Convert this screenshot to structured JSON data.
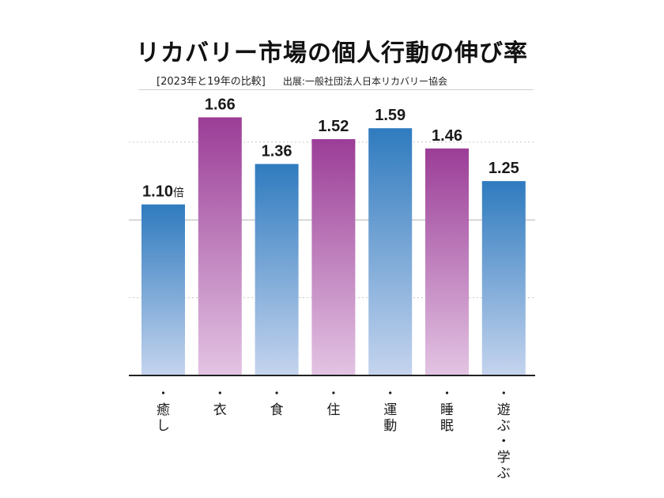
{
  "header": {
    "title": "リカバリー市場の個人行動の伸び率",
    "comparison": "[2023年と19年の比較]",
    "source": "出展:一般社団法人日本リカバリー協会"
  },
  "chart_data": {
    "type": "bar",
    "title": "リカバリー市場の個人行動の伸び率",
    "subtitle": "[2023年と19年の比較]",
    "source": "出展:一般社団法人日本リカバリー協会",
    "categories": [
      "癒し",
      "衣",
      "食",
      "住",
      "運動",
      "睡眠",
      "遊ぶ・学ぶ"
    ],
    "values": [
      1.1,
      1.66,
      1.36,
      1.52,
      1.59,
      1.46,
      1.25
    ],
    "value_labels": [
      "1.10",
      "1.66",
      "1.36",
      "1.52",
      "1.59",
      "1.46",
      "1.25"
    ],
    "first_label_unit": "倍",
    "bar_styles": [
      "blue",
      "purple",
      "blue",
      "purple",
      "blue",
      "purple",
      "blue"
    ],
    "ylim": [
      0,
      1.83
    ],
    "grid": true,
    "colors": {
      "blue_top": "#2f7bbf",
      "blue_bottom": "#c5d4ee",
      "purple_top": "#9b3d97",
      "purple_bottom": "#e3c4e3",
      "grid": "#c8c8c8",
      "axis": "#222222"
    }
  }
}
